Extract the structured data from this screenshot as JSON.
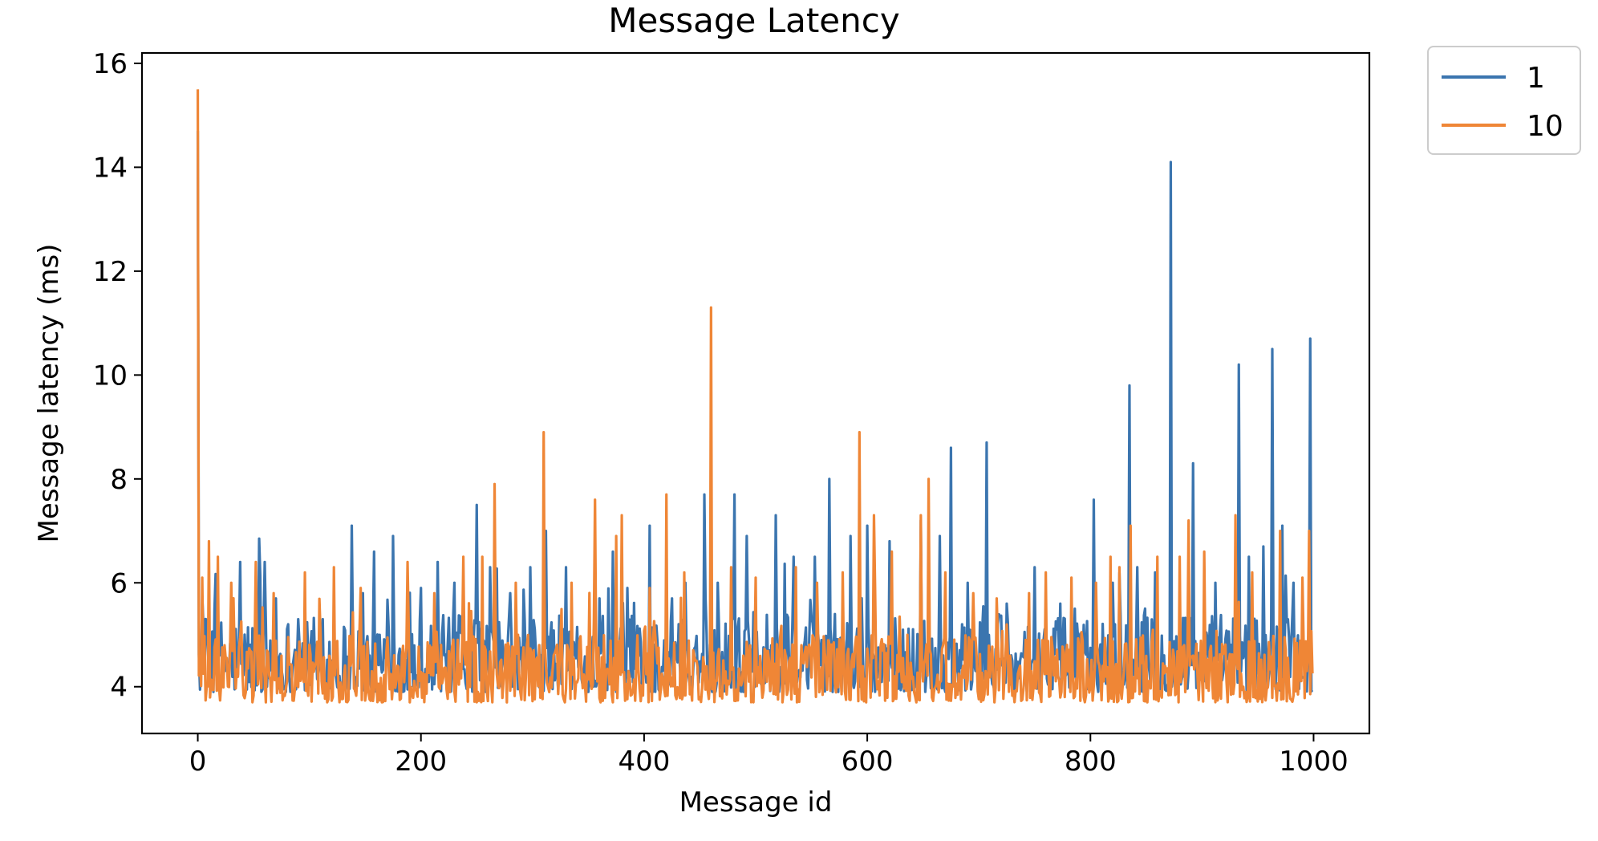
{
  "chart_data": {
    "type": "line",
    "title": "Message Latency",
    "xlabel": "Message id",
    "ylabel": "Message latency (ms)",
    "xlim": [
      -50,
      1050
    ],
    "ylim": [
      3.1,
      16.2
    ],
    "xticks": [
      0,
      200,
      400,
      600,
      800,
      1000
    ],
    "yticks": [
      4,
      6,
      8,
      10,
      12,
      14,
      16
    ],
    "grid": false,
    "legend": "outside-top-right",
    "n_points": 1000,
    "series": [
      {
        "name": "1",
        "color": "#3b75af",
        "baseline_min": 3.9,
        "baseline_max": 5.4,
        "start_value": 14.7,
        "peaks": [
          [
            5,
            5.2
          ],
          [
            15,
            5.5
          ],
          [
            38,
            6.4
          ],
          [
            55,
            6.85
          ],
          [
            60,
            6.4
          ],
          [
            70,
            5.7
          ],
          [
            90,
            5.3
          ],
          [
            112,
            5.3
          ],
          [
            138,
            7.1
          ],
          [
            148,
            5.8
          ],
          [
            158,
            6.6
          ],
          [
            175,
            6.9
          ],
          [
            200,
            5.9
          ],
          [
            215,
            6.4
          ],
          [
            230,
            6.0
          ],
          [
            250,
            7.5
          ],
          [
            262,
            6.3
          ],
          [
            280,
            5.8
          ],
          [
            298,
            6.3
          ],
          [
            312,
            7.0
          ],
          [
            330,
            6.3
          ],
          [
            360,
            5.7
          ],
          [
            372,
            6.6
          ],
          [
            385,
            5.9
          ],
          [
            405,
            7.1
          ],
          [
            425,
            5.7
          ],
          [
            437,
            6.0
          ],
          [
            454,
            7.7
          ],
          [
            466,
            6.0
          ],
          [
            481,
            7.7
          ],
          [
            492,
            6.9
          ],
          [
            518,
            7.3
          ],
          [
            534,
            6.5
          ],
          [
            553,
            6.5
          ],
          [
            566,
            8.0
          ],
          [
            585,
            6.9
          ],
          [
            600,
            7.1
          ],
          [
            620,
            6.8
          ],
          [
            648,
            7.2
          ],
          [
            665,
            6.9
          ],
          [
            675,
            8.6
          ],
          [
            690,
            6.0
          ],
          [
            707,
            8.7
          ],
          [
            725,
            5.6
          ],
          [
            750,
            6.3
          ],
          [
            773,
            5.6
          ],
          [
            786,
            5.5
          ],
          [
            803,
            7.6
          ],
          [
            820,
            6.0
          ],
          [
            835,
            9.8
          ],
          [
            842,
            6.3
          ],
          [
            858,
            6.2
          ],
          [
            872,
            14.1
          ],
          [
            892,
            8.3
          ],
          [
            912,
            6.0
          ],
          [
            933,
            10.2
          ],
          [
            942,
            6.5
          ],
          [
            955,
            6.7
          ],
          [
            963,
            10.5
          ],
          [
            972,
            7.1
          ],
          [
            982,
            6.0
          ],
          [
            997,
            10.7
          ]
        ]
      },
      {
        "name": "10",
        "color": "#ef8636",
        "baseline_min": 3.7,
        "baseline_max": 5.0,
        "start_value": 15.5,
        "peaks": [
          [
            4,
            6.1
          ],
          [
            10,
            6.8
          ],
          [
            18,
            6.5
          ],
          [
            30,
            6.0
          ],
          [
            52,
            6.4
          ],
          [
            68,
            5.8
          ],
          [
            96,
            6.2
          ],
          [
            122,
            6.3
          ],
          [
            146,
            5.9
          ],
          [
            188,
            6.4
          ],
          [
            212,
            5.8
          ],
          [
            238,
            6.5
          ],
          [
            255,
            6.5
          ],
          [
            266,
            7.9
          ],
          [
            285,
            6.0
          ],
          [
            310,
            8.9
          ],
          [
            335,
            6.0
          ],
          [
            356,
            7.6
          ],
          [
            375,
            6.9
          ],
          [
            380,
            7.3
          ],
          [
            405,
            5.9
          ],
          [
            420,
            7.7
          ],
          [
            436,
            6.2
          ],
          [
            460,
            11.3
          ],
          [
            478,
            6.3
          ],
          [
            500,
            6.1
          ],
          [
            536,
            6.3
          ],
          [
            555,
            6.0
          ],
          [
            578,
            6.2
          ],
          [
            593,
            8.9
          ],
          [
            606,
            7.3
          ],
          [
            622,
            6.6
          ],
          [
            648,
            7.3
          ],
          [
            655,
            8.0
          ],
          [
            670,
            6.2
          ],
          [
            695,
            5.8
          ],
          [
            716,
            5.7
          ],
          [
            745,
            5.8
          ],
          [
            760,
            6.2
          ],
          [
            783,
            6.1
          ],
          [
            805,
            6.0
          ],
          [
            818,
            6.5
          ],
          [
            826,
            6.3
          ],
          [
            836,
            7.1
          ],
          [
            860,
            6.5
          ],
          [
            880,
            6.5
          ],
          [
            888,
            7.2
          ],
          [
            902,
            6.6
          ],
          [
            930,
            7.3
          ],
          [
            945,
            6.2
          ],
          [
            970,
            7.0
          ],
          [
            990,
            6.1
          ],
          [
            996,
            7.0
          ]
        ]
      }
    ]
  }
}
